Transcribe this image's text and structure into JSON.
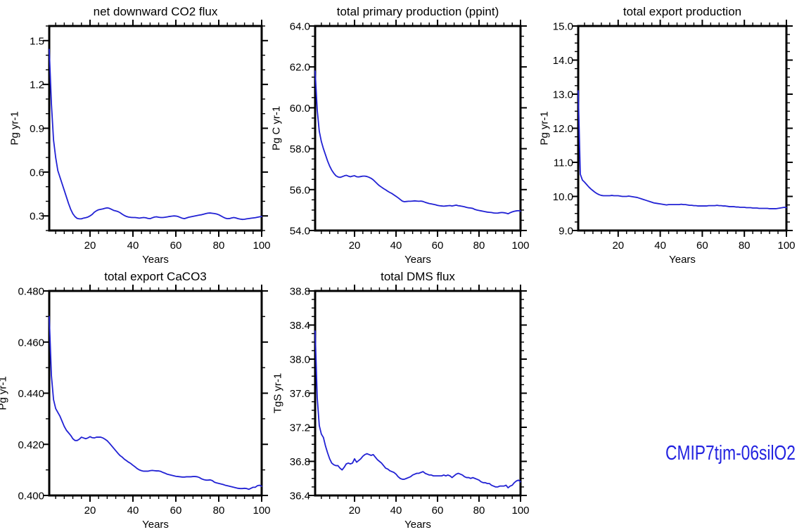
{
  "figure": {
    "background": "#ffffff",
    "annotation": {
      "label": "CMIP7tjm-06silO2",
      "color": "#2222e0"
    }
  },
  "chart_data": [
    {
      "type": "line",
      "title": "net downward CO2 flux",
      "xlabel": "Years",
      "ylabel": "Pg yr-1",
      "line_color": "#2121d4",
      "x_start": 1,
      "x_step": 1,
      "xlim": [
        1,
        100
      ],
      "ylim": [
        0.2,
        1.6
      ],
      "x_major_ticks": [
        20,
        40,
        60,
        80,
        100
      ],
      "x_minor_step": 4,
      "y_major_start": 0.3,
      "y_major_step": 0.3,
      "y_minor_step": 0.1,
      "y_tick_decimals": 1,
      "values": [
        1.44,
        1.07,
        0.82,
        0.7,
        0.61,
        0.565,
        0.52,
        0.475,
        0.43,
        0.385,
        0.345,
        0.315,
        0.295,
        0.283,
        0.28,
        0.28,
        0.285,
        0.288,
        0.292,
        0.3,
        0.31,
        0.325,
        0.335,
        0.342,
        0.345,
        0.348,
        0.352,
        0.355,
        0.352,
        0.345,
        0.338,
        0.334,
        0.33,
        0.322,
        0.312,
        0.303,
        0.296,
        0.292,
        0.29,
        0.289,
        0.289,
        0.287,
        0.285,
        0.287,
        0.289,
        0.287,
        0.283,
        0.281,
        0.287,
        0.292,
        0.294,
        0.291,
        0.289,
        0.289,
        0.291,
        0.293,
        0.296,
        0.298,
        0.3,
        0.299,
        0.296,
        0.29,
        0.284,
        0.281,
        0.286,
        0.291,
        0.294,
        0.297,
        0.3,
        0.303,
        0.306,
        0.308,
        0.312,
        0.316,
        0.319,
        0.32,
        0.318,
        0.316,
        0.313,
        0.308,
        0.3,
        0.292,
        0.285,
        0.281,
        0.282,
        0.286,
        0.289,
        0.286,
        0.281,
        0.278,
        0.276,
        0.277,
        0.28,
        0.282,
        0.284,
        0.286,
        0.288,
        0.291,
        0.294,
        0.296
      ]
    },
    {
      "type": "line",
      "title": "total primary production (ppint)",
      "xlabel": "Years",
      "ylabel": "Pg C yr-1",
      "line_color": "#2121d4",
      "x_start": 1,
      "x_step": 1,
      "xlim": [
        1,
        100
      ],
      "ylim": [
        54.0,
        64.0
      ],
      "x_major_ticks": [
        20,
        40,
        60,
        80,
        100
      ],
      "x_minor_step": 4,
      "y_major_start": 54.0,
      "y_major_step": 2.0,
      "y_minor_step": 0.5,
      "y_tick_decimals": 1,
      "values": [
        61.8,
        59.9,
        58.85,
        58.35,
        58.0,
        57.7,
        57.4,
        57.15,
        56.95,
        56.8,
        56.68,
        56.62,
        56.6,
        56.63,
        56.67,
        56.7,
        56.66,
        56.63,
        56.66,
        56.68,
        56.63,
        56.62,
        56.64,
        56.66,
        56.66,
        56.64,
        56.6,
        56.55,
        56.48,
        56.38,
        56.28,
        56.19,
        56.12,
        56.05,
        55.99,
        55.92,
        55.86,
        55.81,
        55.74,
        55.67,
        55.6,
        55.52,
        55.44,
        55.41,
        55.42,
        55.43,
        55.43,
        55.44,
        55.45,
        55.44,
        55.43,
        55.44,
        55.42,
        55.38,
        55.35,
        55.32,
        55.3,
        55.28,
        55.26,
        55.23,
        55.21,
        55.2,
        55.19,
        55.2,
        55.21,
        55.22,
        55.2,
        55.22,
        55.24,
        55.21,
        55.2,
        55.18,
        55.16,
        55.13,
        55.11,
        55.1,
        55.08,
        55.03,
        55.0,
        54.98,
        54.96,
        54.94,
        54.92,
        54.9,
        54.89,
        54.88,
        54.86,
        54.85,
        54.85,
        54.87,
        54.88,
        54.87,
        54.85,
        54.82,
        54.87,
        54.91,
        54.94,
        54.96,
        54.97,
        54.95
      ]
    },
    {
      "type": "line",
      "title": "total export production",
      "xlabel": "Years",
      "ylabel": "Pg yr-1",
      "line_color": "#2121d4",
      "x_start": 1,
      "x_step": 1,
      "xlim": [
        1,
        100
      ],
      "ylim": [
        9.0,
        15.0
      ],
      "x_major_ticks": [
        20,
        40,
        60,
        80,
        100
      ],
      "x_minor_step": 4,
      "y_major_start": 9.0,
      "y_major_step": 1.0,
      "y_minor_step": 0.25,
      "y_tick_decimals": 1,
      "values": [
        13.1,
        10.65,
        10.48,
        10.42,
        10.35,
        10.28,
        10.22,
        10.17,
        10.12,
        10.08,
        10.05,
        10.03,
        10.02,
        10.02,
        10.02,
        10.02,
        10.03,
        10.02,
        10.02,
        10.02,
        10.01,
        10.0,
        10.0,
        10.0,
        10.01,
        10.0,
        9.99,
        9.98,
        9.97,
        9.95,
        9.93,
        9.91,
        9.89,
        9.87,
        9.85,
        9.83,
        9.81,
        9.8,
        9.79,
        9.78,
        9.77,
        9.76,
        9.75,
        9.76,
        9.76,
        9.76,
        9.76,
        9.76,
        9.76,
        9.77,
        9.76,
        9.76,
        9.75,
        9.74,
        9.74,
        9.73,
        9.73,
        9.72,
        9.72,
        9.72,
        9.72,
        9.72,
        9.73,
        9.73,
        9.73,
        9.73,
        9.74,
        9.73,
        9.73,
        9.72,
        9.72,
        9.71,
        9.7,
        9.7,
        9.7,
        9.69,
        9.69,
        9.68,
        9.68,
        9.68,
        9.67,
        9.67,
        9.67,
        9.66,
        9.66,
        9.66,
        9.65,
        9.65,
        9.65,
        9.65,
        9.65,
        9.64,
        9.64,
        9.64,
        9.64,
        9.65,
        9.66,
        9.67,
        9.68,
        9.67
      ]
    },
    {
      "type": "line",
      "title": "total export CaCO3",
      "xlabel": "Years",
      "ylabel": "Pg yr-1",
      "line_color": "#2121d4",
      "x_start": 1,
      "x_step": 1,
      "xlim": [
        1,
        100
      ],
      "ylim": [
        0.4,
        0.48
      ],
      "x_major_ticks": [
        20,
        40,
        60,
        80,
        100
      ],
      "x_minor_step": 4,
      "y_major_start": 0.4,
      "y_major_step": 0.02,
      "y_minor_step": 0.01,
      "y_tick_decimals": 3,
      "values": [
        0.47,
        0.447,
        0.4375,
        0.434,
        0.4325,
        0.431,
        0.429,
        0.427,
        0.4255,
        0.4245,
        0.4235,
        0.4222,
        0.4215,
        0.4215,
        0.422,
        0.4228,
        0.4225,
        0.4222,
        0.4225,
        0.423,
        0.4226,
        0.4225,
        0.4228,
        0.4228,
        0.4228,
        0.4225,
        0.422,
        0.4214,
        0.4205,
        0.4195,
        0.4185,
        0.4175,
        0.4165,
        0.4156,
        0.415,
        0.4142,
        0.4136,
        0.413,
        0.4125,
        0.4118,
        0.4112,
        0.4105,
        0.41,
        0.4097,
        0.4095,
        0.4095,
        0.4095,
        0.4097,
        0.4098,
        0.4097,
        0.4096,
        0.4096,
        0.4094,
        0.409,
        0.4087,
        0.4083,
        0.4081,
        0.4079,
        0.4077,
        0.4075,
        0.4074,
        0.4073,
        0.4072,
        0.4072,
        0.4073,
        0.4073,
        0.4073,
        0.4074,
        0.4074,
        0.4073,
        0.407,
        0.4065,
        0.4062,
        0.406,
        0.406,
        0.4061,
        0.4058,
        0.4052,
        0.4049,
        0.4047,
        0.4045,
        0.4043,
        0.404,
        0.4038,
        0.4036,
        0.4034,
        0.4032,
        0.403,
        0.4028,
        0.4027,
        0.4027,
        0.4028,
        0.4027,
        0.4024,
        0.4028,
        0.4032,
        0.4032,
        0.4038,
        0.404,
        0.4036
      ]
    },
    {
      "type": "line",
      "title": "total DMS flux",
      "xlabel": "Years",
      "ylabel": "TgS yr-1",
      "line_color": "#2121d4",
      "x_start": 1,
      "x_step": 1,
      "xlim": [
        1,
        100
      ],
      "ylim": [
        36.4,
        38.8
      ],
      "x_major_ticks": [
        20,
        40,
        60,
        80,
        100
      ],
      "x_minor_step": 4,
      "y_major_start": 36.4,
      "y_major_step": 0.4,
      "y_minor_step": 0.1,
      "y_tick_decimals": 1,
      "values": [
        38.33,
        37.55,
        37.22,
        37.12,
        37.08,
        36.98,
        36.9,
        36.83,
        36.78,
        36.76,
        36.75,
        36.75,
        36.72,
        36.7,
        36.73,
        36.77,
        36.78,
        36.77,
        36.78,
        36.83,
        36.79,
        36.81,
        36.83,
        36.86,
        36.88,
        36.89,
        36.88,
        36.87,
        36.88,
        36.85,
        36.82,
        36.8,
        36.78,
        36.75,
        36.72,
        36.71,
        36.69,
        36.68,
        36.67,
        36.65,
        36.62,
        36.6,
        36.59,
        36.59,
        36.6,
        36.61,
        36.62,
        36.64,
        36.65,
        36.66,
        36.66,
        36.67,
        36.68,
        36.66,
        36.65,
        36.64,
        36.64,
        36.63,
        36.63,
        36.63,
        36.63,
        36.63,
        36.64,
        36.63,
        36.64,
        36.63,
        36.61,
        36.63,
        36.65,
        36.66,
        36.65,
        36.64,
        36.62,
        36.61,
        36.61,
        36.6,
        36.61,
        36.6,
        36.59,
        36.58,
        36.56,
        36.55,
        36.55,
        36.54,
        36.54,
        36.52,
        36.51,
        36.5,
        36.5,
        36.51,
        36.51,
        36.51,
        36.52,
        36.49,
        36.51,
        36.52,
        36.55,
        36.57,
        36.58,
        36.56
      ]
    }
  ]
}
